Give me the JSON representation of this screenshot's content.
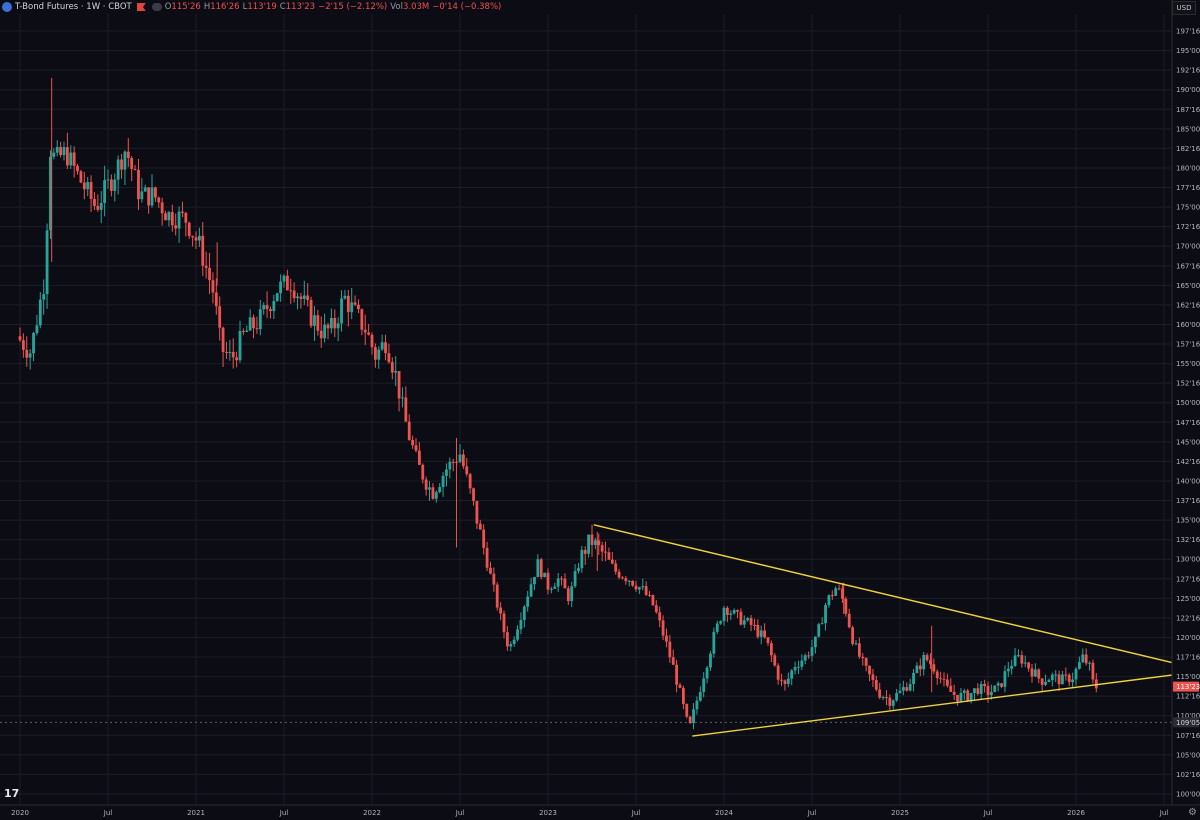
{
  "header": {
    "symbol": "T-Bond Futures · 1W · CBOT",
    "open_label": "O",
    "open": "115'26",
    "high_label": "H",
    "high": "116'26",
    "low_label": "L",
    "low": "113'19",
    "close_label": "C",
    "close": "113'23",
    "change": "−2'15 (−2.12%)",
    "vol_label": "Vol",
    "volume": "3.03M",
    "vol_change": "−0'14 (−0.38%)"
  },
  "currency": "USD",
  "colors": {
    "up": "#26a69a",
    "down": "#ef5350",
    "trendline": "#f0d23a",
    "background": "#0c0c14",
    "grid": "#1c1d27",
    "axis_text": "#b2b5be"
  },
  "chart_data": {
    "type": "candlestick",
    "title": "T-Bond Futures · 1W · CBOT",
    "ylim": [
      98.5,
      199.5
    ],
    "xlim": [
      2020.0,
      2026.7
    ],
    "y_ticks": [
      {
        "v": 100,
        "label": "100'00"
      },
      {
        "v": 102.5,
        "label": "102'16"
      },
      {
        "v": 105,
        "label": "105'00"
      },
      {
        "v": 107.5,
        "label": "107'16"
      },
      {
        "v": 110,
        "label": "110'00"
      },
      {
        "v": 112.5,
        "label": "112'16"
      },
      {
        "v": 115,
        "label": "115'00"
      },
      {
        "v": 117.5,
        "label": "117'16"
      },
      {
        "v": 120,
        "label": "120'00"
      },
      {
        "v": 122.5,
        "label": "122'16"
      },
      {
        "v": 125,
        "label": "125'00"
      },
      {
        "v": 127.5,
        "label": "127'16"
      },
      {
        "v": 130,
        "label": "130'00"
      },
      {
        "v": 132.5,
        "label": "132'16"
      },
      {
        "v": 135,
        "label": "135'00"
      },
      {
        "v": 137.5,
        "label": "137'16"
      },
      {
        "v": 140,
        "label": "140'00"
      },
      {
        "v": 142.5,
        "label": "142'16"
      },
      {
        "v": 145,
        "label": "145'00"
      },
      {
        "v": 147.5,
        "label": "147'16"
      },
      {
        "v": 150,
        "label": "150'00"
      },
      {
        "v": 152.5,
        "label": "152'16"
      },
      {
        "v": 155,
        "label": "155'00"
      },
      {
        "v": 157.5,
        "label": "157'16"
      },
      {
        "v": 160,
        "label": "160'00"
      },
      {
        "v": 162.5,
        "label": "162'16"
      },
      {
        "v": 165,
        "label": "165'00"
      },
      {
        "v": 167.5,
        "label": "167'16"
      },
      {
        "v": 170,
        "label": "170'00"
      },
      {
        "v": 172.5,
        "label": "172'16"
      },
      {
        "v": 175,
        "label": "175'00"
      },
      {
        "v": 177.5,
        "label": "177'16"
      },
      {
        "v": 180,
        "label": "180'00"
      },
      {
        "v": 182.5,
        "label": "182'16"
      },
      {
        "v": 185,
        "label": "185'00"
      },
      {
        "v": 187.5,
        "label": "187'16"
      },
      {
        "v": 190,
        "label": "190'00"
      },
      {
        "v": 192.5,
        "label": "192'16"
      },
      {
        "v": 195,
        "label": "195'00"
      },
      {
        "v": 197.5,
        "label": "197'16"
      }
    ],
    "x_ticks": [
      {
        "t": 2020.0,
        "label": "2020"
      },
      {
        "t": 2020.5,
        "label": "Jul"
      },
      {
        "t": 2021.0,
        "label": "2021"
      },
      {
        "t": 2021.5,
        "label": "Jul"
      },
      {
        "t": 2022.0,
        "label": "2022"
      },
      {
        "t": 2022.5,
        "label": "Jul"
      },
      {
        "t": 2023.0,
        "label": "2023"
      },
      {
        "t": 2023.5,
        "label": "Jul"
      },
      {
        "t": 2024.0,
        "label": "2024"
      },
      {
        "t": 2024.5,
        "label": "Jul"
      },
      {
        "t": 2025.0,
        "label": "2025"
      },
      {
        "t": 2025.5,
        "label": "Jul"
      },
      {
        "t": 2026.0,
        "label": "2026"
      },
      {
        "t": 2026.5,
        "label": "Jul"
      }
    ],
    "last_price": {
      "value": 113.72,
      "label": "113'23"
    },
    "reference_price": {
      "value": 109.16,
      "label": "109'05"
    },
    "trendlines": [
      {
        "name": "upper-trendline",
        "t1": 2023.26,
        "p1": 134.4,
        "t2": 2026.67,
        "p2": 116.8
      },
      {
        "name": "lower-trendline",
        "t1": 2023.82,
        "p1": 107.4,
        "t2": 2026.67,
        "p2": 115.2
      }
    ],
    "price_path": [
      [
        2020.0,
        158.5
      ],
      [
        2020.08,
        156.5
      ],
      [
        2020.16,
        166.0
      ],
      [
        2020.19,
        182.5
      ],
      [
        2020.22,
        181.0
      ],
      [
        2020.28,
        182.0
      ],
      [
        2020.36,
        178.5
      ],
      [
        2020.45,
        175.0
      ],
      [
        2020.55,
        179.0
      ],
      [
        2020.62,
        182.5
      ],
      [
        2020.7,
        176.5
      ],
      [
        2020.78,
        176.5
      ],
      [
        2020.86,
        174.0
      ],
      [
        2020.96,
        173.5
      ],
      [
        2021.04,
        170.0
      ],
      [
        2021.12,
        164.0
      ],
      [
        2021.16,
        157.0
      ],
      [
        2021.22,
        155.5
      ],
      [
        2021.3,
        159.0
      ],
      [
        2021.38,
        160.5
      ],
      [
        2021.48,
        164.5
      ],
      [
        2021.56,
        165.5
      ],
      [
        2021.66,
        161.5
      ],
      [
        2021.74,
        159.0
      ],
      [
        2021.8,
        159.5
      ],
      [
        2021.86,
        163.5
      ],
      [
        2021.92,
        161.5
      ],
      [
        2021.98,
        159.5
      ],
      [
        2022.04,
        156.0
      ],
      [
        2022.1,
        158.0
      ],
      [
        2022.16,
        153.0
      ],
      [
        2022.22,
        146.5
      ],
      [
        2022.28,
        142.0
      ],
      [
        2022.36,
        138.5
      ],
      [
        2022.44,
        141.5
      ],
      [
        2022.52,
        143.5
      ],
      [
        2022.6,
        136.5
      ],
      [
        2022.68,
        129.0
      ],
      [
        2022.76,
        121.5
      ],
      [
        2022.8,
        118.5
      ],
      [
        2022.88,
        124.0
      ],
      [
        2022.96,
        129.5
      ],
      [
        2023.02,
        126.5
      ],
      [
        2023.08,
        127.5
      ],
      [
        2023.14,
        125.0
      ],
      [
        2023.2,
        130.0
      ],
      [
        2023.26,
        132.5
      ],
      [
        2023.34,
        130.5
      ],
      [
        2023.4,
        128.5
      ],
      [
        2023.48,
        127.5
      ],
      [
        2023.56,
        126.0
      ],
      [
        2023.62,
        124.0
      ],
      [
        2023.68,
        120.0
      ],
      [
        2023.74,
        115.5
      ],
      [
        2023.8,
        110.0
      ],
      [
        2023.82,
        108.0
      ],
      [
        2023.86,
        111.5
      ],
      [
        2023.9,
        115.0
      ],
      [
        2023.96,
        120.0
      ],
      [
        2024.02,
        124.0
      ],
      [
        2024.1,
        122.5
      ],
      [
        2024.18,
        121.5
      ],
      [
        2024.26,
        119.5
      ],
      [
        2024.32,
        115.5
      ],
      [
        2024.36,
        113.5
      ],
      [
        2024.42,
        116.5
      ],
      [
        2024.48,
        117.5
      ],
      [
        2024.54,
        119.5
      ],
      [
        2024.6,
        124.5
      ],
      [
        2024.66,
        126.5
      ],
      [
        2024.7,
        124.5
      ],
      [
        2024.76,
        119.0
      ],
      [
        2024.82,
        116.0
      ],
      [
        2024.9,
        113.0
      ],
      [
        2024.96,
        112.0
      ],
      [
        2025.02,
        113.0
      ],
      [
        2025.08,
        114.5
      ],
      [
        2025.16,
        117.5
      ],
      [
        2025.22,
        116.0
      ],
      [
        2025.28,
        113.5
      ],
      [
        2025.34,
        112.5
      ],
      [
        2025.4,
        112.5
      ],
      [
        2025.46,
        113.5
      ],
      [
        2025.52,
        113.0
      ],
      [
        2025.58,
        113.5
      ],
      [
        2025.64,
        116.5
      ],
      [
        2025.7,
        117.5
      ],
      [
        2025.76,
        116.0
      ],
      [
        2025.82,
        114.5
      ],
      [
        2025.88,
        115.0
      ],
      [
        2025.94,
        114.5
      ],
      [
        2026.0,
        115.0
      ],
      [
        2026.06,
        117.5
      ],
      [
        2026.1,
        116.0
      ],
      [
        2026.12,
        113.7
      ]
    ],
    "spikes": [
      {
        "t": 2020.18,
        "high": 191.5,
        "low": 168.0
      },
      {
        "t": 2022.48,
        "high": 145.5,
        "low": 131.5
      },
      {
        "t": 2025.18,
        "high": 121.5,
        "low": 113.0
      },
      {
        "t": 2024.68,
        "high": 127.0,
        "low": 123.0
      },
      {
        "t": 2021.12,
        "high": 170.5,
        "low": 165.0
      },
      {
        "t": 2023.28,
        "high": 133.5,
        "low": 128.5
      }
    ]
  }
}
